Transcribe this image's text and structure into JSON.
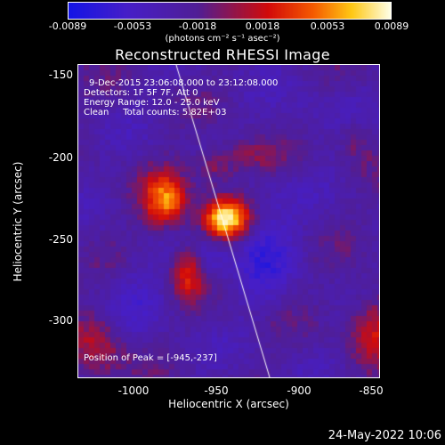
{
  "colorbar": {
    "ticks": [
      "-0.0089",
      "-0.0053",
      "-0.0018",
      "0.0018",
      "0.0053",
      "0.0089"
    ],
    "units": "(photons cm⁻² s⁻¹ asec⁻²)"
  },
  "title": "Reconstructed RHESSI Image",
  "info": {
    "time": "9-Dec-2015 23:06:08.000 to 23:12:08.000",
    "detectors": "Detectors: 1F 5F 7F, Att 0",
    "energy": "Energy Range: 12.0 - 25.0 keV",
    "clean": "Clean     Total counts: 5.82E+03"
  },
  "peak_label": "Position of Peak = [-945,-237]",
  "axes": {
    "xlabel": "Heliocentric X (arcsec)",
    "ylabel": "Heliocentric Y (arcsec)",
    "x_ticks": [
      "-1000",
      "-950",
      "-900",
      "-850"
    ],
    "y_ticks": [
      "-150",
      "-200",
      "-250",
      "-300"
    ]
  },
  "footer_date": "24-May-2022 10:06",
  "colors": {
    "frame": "#ffffff",
    "background": "#000000"
  }
}
